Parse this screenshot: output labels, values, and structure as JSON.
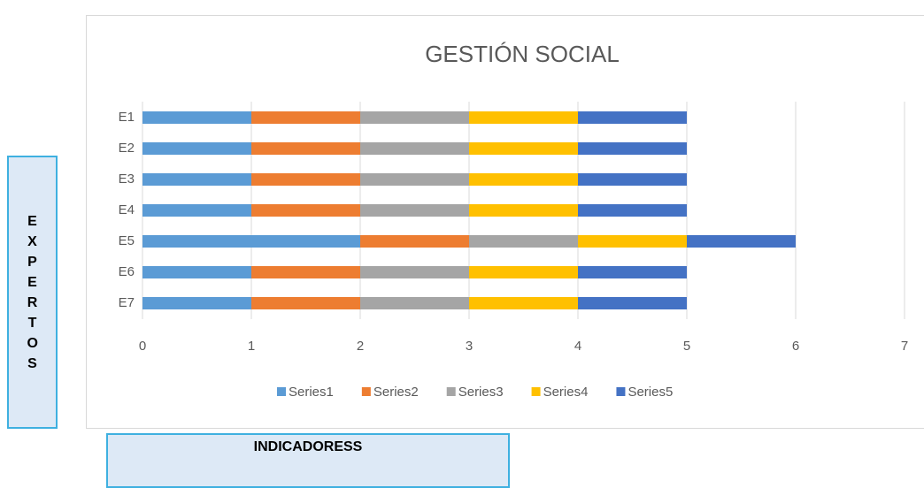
{
  "chart_data": {
    "type": "stacked_bar_horizontal",
    "title": "GESTIÓN SOCIAL",
    "ylabel": "EXPERTOS",
    "xlabel": "INDICADORESS",
    "categories": [
      "E1",
      "E2",
      "E3",
      "E4",
      "E5",
      "E6",
      "E7"
    ],
    "series": [
      {
        "name": "Series1",
        "color": "#5b9bd5",
        "values": [
          1,
          1,
          1,
          1,
          2,
          1,
          1
        ]
      },
      {
        "name": "Series2",
        "color": "#ed7d31",
        "values": [
          1,
          1,
          1,
          1,
          1,
          1,
          1
        ]
      },
      {
        "name": "Series3",
        "color": "#a5a5a5",
        "values": [
          1,
          1,
          1,
          1,
          1,
          1,
          1
        ]
      },
      {
        "name": "Series4",
        "color": "#ffc000",
        "values": [
          1,
          1,
          1,
          1,
          1,
          1,
          1
        ]
      },
      {
        "name": "Series5",
        "color": "#4472c4",
        "values": [
          1,
          1,
          1,
          1,
          1,
          1,
          1
        ]
      }
    ],
    "xlim": [
      0,
      7
    ],
    "xticks": [
      0,
      1,
      2,
      3,
      4,
      5,
      6,
      7
    ],
    "grid": true,
    "legend": "bottom"
  }
}
